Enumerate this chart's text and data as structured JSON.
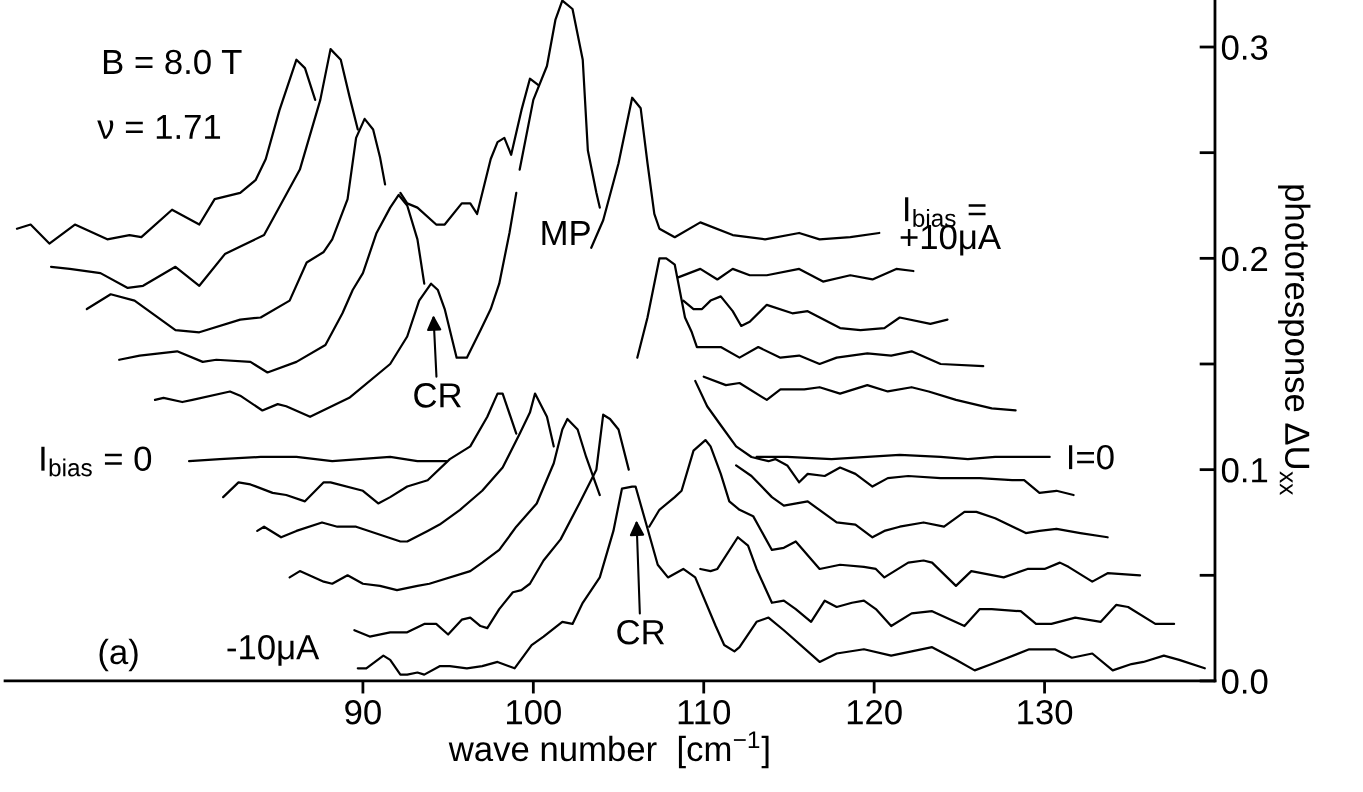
{
  "chart_data": {
    "type": "line",
    "xlabel": "wave number  [cm$^{−1}$]",
    "ylabel": "photoresponse ΔU$_{xx}$",
    "xlim": [
      69,
      140
    ],
    "xticks": [
      90,
      100,
      110,
      120,
      130
    ],
    "ylim": [
      0,
      0.323
    ],
    "yticks": [
      {
        "value": 0,
        "label": "0.0"
      },
      {
        "value": 0.05,
        "label": null
      },
      0.1,
      {
        "value": 0.15,
        "label": null
      },
      0.2,
      {
        "value": 0.25,
        "label": null
      },
      0.3
    ],
    "annotations": [
      "B = 8.0 T",
      "ν = 1.71",
      "(a)",
      "MP",
      "CR",
      "CR",
      "I$_{bias}$ = 0",
      "I=0",
      "I$_{bias}$ =",
      "+10μA",
      "-10μA"
    ],
    "series": [
      {
        "color": "#000000",
        "x": [
          69.7,
          70.5,
          71.6,
          73.1,
          75.0,
          76.3,
          77.0,
          78.8,
          80.4,
          81.3,
          82.8,
          83.7,
          84.3,
          85.1,
          86.1,
          86.6,
          87.2,
          95,
          103.4,
          104.1,
          105.0,
          105.8,
          106.3,
          106.7,
          107.1,
          107.4,
          108.3,
          109.8,
          111.7,
          113.6,
          115.6,
          116.8,
          118.6,
          120.3
        ],
        "values": [
          0.214,
          0.216,
          0.207,
          0.216,
          0.209,
          0.211,
          0.21,
          0.223,
          0.216,
          0.228,
          0.231,
          0.237,
          0.247,
          0.27,
          0.294,
          0.29,
          0.275,
          null,
          0.205,
          0.218,
          0.245,
          0.276,
          0.271,
          0.245,
          0.221,
          0.214,
          0.21,
          0.217,
          0.211,
          0.209,
          0.212,
          0.209,
          0.21,
          0.212
        ]
      },
      {
        "color": "#000000",
        "x": [
          71.7,
          72.8,
          74.6,
          76.2,
          77.1,
          79.0,
          80.4,
          81.9,
          82.9,
          84.2,
          86.3,
          87.5,
          88.1,
          88.7,
          89.2,
          89.7,
          90.5,
          92.2,
          92.6,
          93.2,
          94.3,
          94.8,
          95.8,
          96.3,
          96.7,
          97.5,
          97.9,
          98.3,
          98.7,
          99.3,
          99.8,
          100.3,
          103,
          108.5,
          109.8,
          110.8,
          111.7,
          112.7,
          113.7,
          115.6,
          117.0,
          118.6,
          119.9,
          121.3,
          122.3
        ],
        "values": [
          0.196,
          0.195,
          0.193,
          0.186,
          0.187,
          0.196,
          0.187,
          0.202,
          0.206,
          0.211,
          0.242,
          0.275,
          0.299,
          0.294,
          0.277,
          0.261,
          null,
          0.231,
          0.226,
          0.224,
          0.216,
          0.216,
          0.226,
          0.226,
          0.221,
          0.247,
          0.255,
          0.257,
          0.249,
          0.27,
          0.285,
          0.282,
          null,
          0.191,
          0.195,
          0.19,
          0.195,
          0.192,
          0.192,
          0.195,
          0.189,
          0.192,
          0.19,
          0.195,
          0.194
        ]
      },
      {
        "color": "#000000",
        "x": [
          73.8,
          75.2,
          76.6,
          79.0,
          80.4,
          82.8,
          84.0,
          85.7,
          86.7,
          87.7,
          88.2,
          89.1,
          89.6,
          90.1,
          90.6,
          91.0,
          91.3,
          95,
          99.2,
          100.0,
          100.8,
          101.3,
          101.7,
          102.3,
          102.9,
          103.2,
          103.7,
          103.9,
          106,
          108.8,
          109.4,
          109.9,
          110.4,
          111.0,
          111.7,
          112.2,
          112.7,
          113.7,
          115.2,
          116.1,
          118.0,
          119.2,
          120.6,
          121.5,
          123.3,
          124.3
        ],
        "values": [
          0.176,
          0.183,
          0.18,
          0.166,
          0.165,
          0.171,
          0.172,
          0.18,
          0.198,
          0.203,
          0.209,
          0.228,
          0.257,
          0.266,
          0.261,
          0.248,
          0.235,
          null,
          0.242,
          0.275,
          0.291,
          0.313,
          0.322,
          0.318,
          0.294,
          0.251,
          0.231,
          0.224,
          null,
          0.18,
          0.176,
          0.176,
          0.18,
          0.182,
          0.175,
          0.168,
          0.17,
          0.178,
          0.174,
          0.175,
          0.167,
          0.166,
          0.167,
          0.172,
          0.169,
          0.171
        ]
      },
      {
        "color": "#000000",
        "x": [
          75.7,
          76.9,
          79.1,
          80.6,
          81.4,
          83.4,
          84.4,
          86.1,
          87.8,
          88.8,
          89.4,
          90.0,
          90.8,
          91.6,
          92.1,
          92.6,
          93.2,
          93.6,
          100,
          106.1,
          106.7,
          107.4,
          107.8,
          108.3,
          108.9,
          109.3,
          109.6,
          111.0,
          112.1,
          113.2,
          114.5,
          115.6,
          116.8,
          117.8,
          119.6,
          121.0,
          122.2,
          123.9,
          126.4
        ],
        "values": [
          0.152,
          0.154,
          0.156,
          0.151,
          0.152,
          0.151,
          0.146,
          0.151,
          0.159,
          0.174,
          0.185,
          0.193,
          0.212,
          0.224,
          0.23,
          0.225,
          0.209,
          0.188,
          null,
          0.153,
          0.172,
          0.2,
          0.2,
          0.197,
          0.172,
          0.165,
          0.158,
          0.158,
          0.153,
          0.158,
          0.153,
          0.154,
          0.15,
          0.153,
          0.155,
          0.154,
          0.156,
          0.15,
          0.149
        ]
      },
      {
        "color": "#000000",
        "x": [
          77.8,
          78.3,
          79.4,
          80.0,
          82.2,
          82.8,
          84.1,
          85.0,
          85.5,
          86.9,
          89.2,
          91.6,
          92.6,
          93.3,
          94.0,
          94.4,
          94.8,
          95.5,
          96.1,
          96.9,
          97.5,
          98.0,
          98.6,
          99.0,
          102,
          110.0,
          111.3,
          112.1,
          113.7,
          114.5,
          115.9,
          116.8,
          118.0,
          119.6,
          120.8,
          122.2,
          123.2,
          124.8,
          126.9,
          128.3
        ],
        "values": [
          0.133,
          0.134,
          0.132,
          0.133,
          0.137,
          0.135,
          0.128,
          0.131,
          0.13,
          0.125,
          0.134,
          0.15,
          0.163,
          0.18,
          0.188,
          0.185,
          0.176,
          0.153,
          0.153,
          0.166,
          0.176,
          0.188,
          0.212,
          0.231,
          null,
          0.144,
          0.14,
          0.141,
          0.133,
          0.138,
          0.138,
          0.139,
          0.136,
          0.14,
          0.137,
          0.139,
          0.137,
          0.133,
          0.129,
          0.128
        ]
      },
      {
        "color": "#000000",
        "x": [
          79.8,
          81.6,
          84.0,
          86.1,
          88.2,
          91.6,
          93.2,
          94.9,
          100,
          113.1,
          114.9,
          117.5,
          119.6,
          121.5,
          123.9,
          125.5,
          127.1,
          130.3
        ],
        "values": [
          0.104,
          0.105,
          0.106,
          0.106,
          0.104,
          0.106,
          0.104,
          0.104,
          null,
          0.106,
          0.106,
          0.105,
          0.106,
          0.107,
          0.106,
          0.105,
          0.106,
          0.106
        ]
      },
      {
        "color": "#000000",
        "x": [
          81.8,
          82.7,
          83.4,
          84.7,
          85.5,
          86.6,
          87.7,
          88.1,
          90.0,
          90.9,
          91.6,
          92.6,
          93.8,
          95.1,
          96.3,
          97.3,
          97.9,
          98.2,
          99.0,
          103,
          109.5,
          110.2,
          111.0,
          111.9,
          112.8,
          113.8,
          114.2,
          114.9,
          115.6,
          116.1,
          117.1,
          118.0,
          118.9,
          119.9,
          120.8,
          122.0,
          123.9,
          126.2,
          128.1,
          128.8,
          129.7,
          130.7,
          131.7
        ],
        "values": [
          0.087,
          0.094,
          0.093,
          0.089,
          0.088,
          0.085,
          0.094,
          0.094,
          0.09,
          0.084,
          0.087,
          0.092,
          0.095,
          0.105,
          0.111,
          0.125,
          0.136,
          0.136,
          0.117,
          null,
          0.142,
          0.13,
          0.121,
          0.111,
          0.106,
          0.104,
          0.105,
          0.102,
          0.094,
          0.098,
          0.097,
          0.101,
          0.098,
          0.092,
          0.096,
          0.097,
          0.096,
          0.096,
          0.095,
          0.095,
          0.089,
          0.09,
          0.088
        ]
      },
      {
        "color": "#000000",
        "x": [
          83.8,
          84.2,
          85.2,
          86.1,
          87.6,
          88.5,
          89.6,
          92.2,
          92.6,
          93.8,
          94.5,
          95.7,
          97.0,
          98.2,
          99.2,
          99.8,
          100.1,
          100.8,
          101.2,
          105,
          111.9,
          112.8,
          114.0,
          114.7,
          116.1,
          117.8,
          118.9,
          119.9,
          120.6,
          121.5,
          122.9,
          124.1,
          125.3,
          126.0,
          127.1,
          128.9,
          129.7,
          130.7,
          132.1,
          133.7
        ],
        "values": [
          0.071,
          0.073,
          0.068,
          0.071,
          0.075,
          0.073,
          0.073,
          0.066,
          0.066,
          0.071,
          0.074,
          0.081,
          0.09,
          0.101,
          0.117,
          0.127,
          0.136,
          0.125,
          0.111,
          null,
          0.102,
          0.097,
          0.087,
          0.083,
          0.085,
          0.075,
          0.074,
          0.068,
          0.071,
          0.073,
          0.075,
          0.073,
          0.08,
          0.08,
          0.077,
          0.07,
          0.071,
          0.072,
          0.07,
          0.068
        ]
      },
      {
        "color": "#000000",
        "x": [
          85.7,
          86.3,
          87.7,
          88.2,
          89.1,
          90.0,
          91.0,
          92.0,
          93.2,
          93.9,
          96.3,
          97.0,
          98.0,
          99.0,
          100.2,
          101.2,
          101.7,
          102.0,
          102.6,
          103.1,
          103.9,
          105.5,
          106.8,
          107.4,
          108.3,
          108.7,
          109.4,
          110.1,
          110.4,
          111.0,
          111.5,
          112.1,
          112.9,
          114.0,
          114.7,
          115.4,
          116.8,
          118.0,
          119.4,
          120.1,
          120.6,
          122.0,
          122.9,
          123.4,
          124.8,
          125.7,
          127.6,
          129.0,
          130.0,
          130.9,
          131.4,
          132.8,
          133.7,
          135.6
        ],
        "values": [
          0.049,
          0.052,
          0.047,
          0.046,
          0.05,
          0.046,
          0.045,
          0.043,
          0.045,
          0.046,
          0.052,
          0.056,
          0.062,
          0.073,
          0.084,
          0.103,
          0.119,
          0.124,
          0.119,
          0.106,
          0.088,
          null,
          0.073,
          0.081,
          0.087,
          0.09,
          0.109,
          0.114,
          0.111,
          0.098,
          0.085,
          0.081,
          0.078,
          0.062,
          0.063,
          0.066,
          0.053,
          0.055,
          0.054,
          0.053,
          0.049,
          0.056,
          0.057,
          0.056,
          0.045,
          0.052,
          0.049,
          0.053,
          0.053,
          0.056,
          0.054,
          0.047,
          0.051,
          0.05
        ]
      },
      {
        "color": "#000000",
        "x": [
          89.5,
          90.4,
          91.6,
          92.6,
          93.6,
          94.3,
          95.0,
          95.8,
          96.3,
          96.9,
          97.3,
          98.0,
          98.8,
          99.3,
          99.8,
          100.6,
          101.6,
          102.7,
          103.7,
          104.1,
          104.5,
          105.0,
          105.6,
          107,
          109.8,
          110.4,
          110.8,
          112.0,
          112.6,
          113.1,
          114.0,
          114.7,
          115.4,
          116.3,
          117.1,
          117.8,
          118.7,
          119.4,
          120.1,
          121.0,
          122.2,
          123.4,
          125.3,
          126.2,
          126.9,
          128.6,
          129.5,
          130.4,
          131.8,
          133.3,
          134.2,
          134.9,
          136.5,
          137.6
        ],
        "values": [
          0.024,
          0.021,
          0.023,
          0.023,
          0.027,
          0.027,
          0.022,
          0.029,
          0.03,
          0.026,
          0.025,
          0.034,
          0.042,
          0.043,
          0.046,
          0.057,
          0.067,
          0.084,
          0.1,
          0.126,
          0.124,
          0.119,
          0.1,
          null,
          0.053,
          0.052,
          0.053,
          0.068,
          0.064,
          0.053,
          0.037,
          0.038,
          0.034,
          0.028,
          0.038,
          0.035,
          0.037,
          0.038,
          0.034,
          0.026,
          0.032,
          0.033,
          0.026,
          0.034,
          0.034,
          0.033,
          0.027,
          0.027,
          0.03,
          0.028,
          0.036,
          0.035,
          0.027,
          0.027
        ]
      },
      {
        "color": "#000000",
        "x": [
          89.7,
          90.2,
          91.2,
          91.6,
          92.2,
          92.6,
          93.2,
          93.6,
          94.5,
          95.1,
          96.1,
          97.0,
          97.9,
          98.9,
          99.9,
          100.6,
          101.7,
          102.3,
          102.9,
          103.9,
          104.7,
          105.2,
          105.8,
          106.0,
          106.6,
          107.3,
          107.9,
          108.8,
          109.5,
          110.7,
          111.2,
          111.8,
          112.1,
          113.1,
          113.8,
          114.7,
          116.8,
          117.8,
          119.4,
          121.0,
          123.4,
          124.8,
          125.9,
          126.9,
          129.1,
          130.6,
          131.6,
          132.8,
          134.0,
          135.1,
          135.8,
          137.0,
          137.9,
          139.4
        ],
        "values": [
          0.006,
          0.006,
          0.012,
          0.01,
          0.003,
          0.003,
          0.004,
          0.003,
          0.007,
          0.007,
          0.006,
          0.007,
          0.009,
          0.006,
          0.017,
          0.021,
          0.028,
          0.027,
          0.037,
          0.049,
          0.071,
          0.091,
          0.092,
          0.092,
          0.075,
          0.055,
          0.049,
          0.053,
          0.049,
          0.026,
          0.017,
          0.014,
          0.016,
          0.028,
          0.03,
          0.024,
          0.009,
          0.013,
          0.015,
          0.012,
          0.016,
          0.01,
          0.005,
          0.008,
          0.015,
          0.015,
          0.011,
          0.013,
          0.005,
          0.008,
          0.009,
          0.012,
          0.01,
          0.006
        ]
      }
    ]
  }
}
